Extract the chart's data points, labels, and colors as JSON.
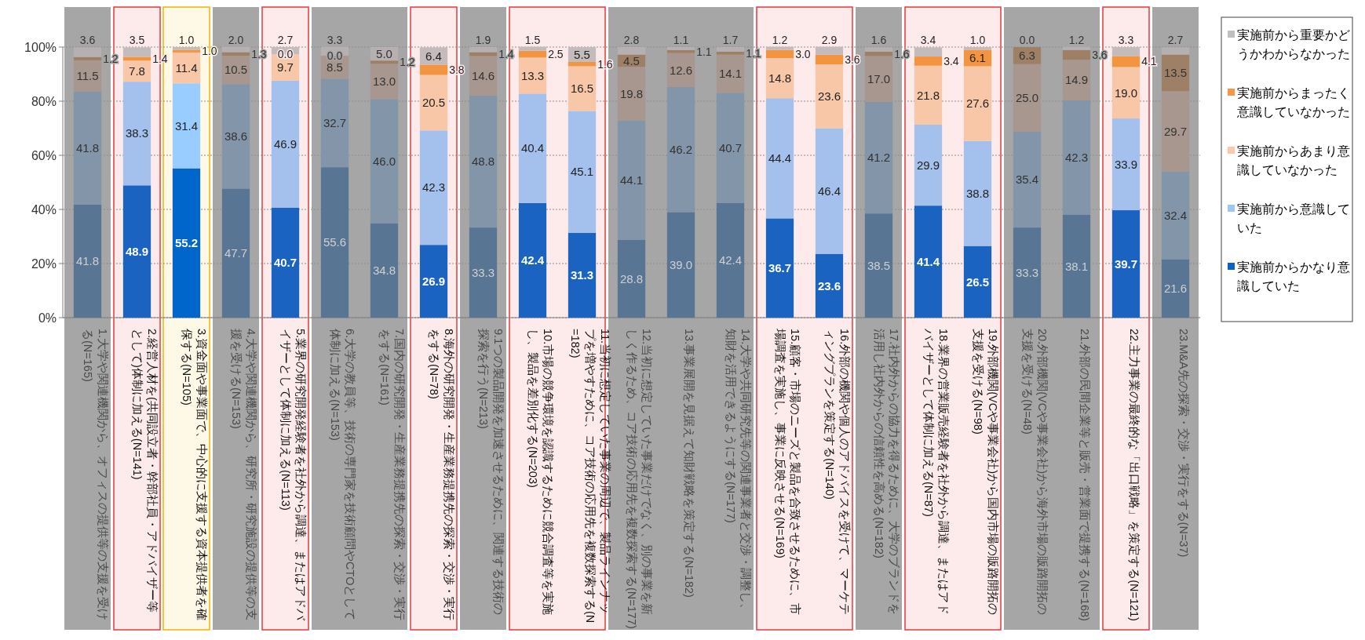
{
  "chart_data": {
    "type": "bar",
    "stacked": true,
    "grid": "y",
    "legend": "right",
    "categories": [
      "1.大学や関連機関から、オフィスの提供等の支援を受ける(N=165)",
      "2.経営人材を(共同設立者・幹部社員・アドバイザー等として)体制に加える(N=141)",
      "3.資金面や事業面で、中心的に支援する資本提供者を確保する(N=105)",
      "4.大学や関連機関から、研究所・研究施設の提供等の支援を受ける(N=153)",
      "5.業界の研究開発経験者を社外から調達、またはアドバイザーとして体制に加える(N=113)",
      "6.大学の教員等、技術の専門家を技術顧問やCTOとして体制に加える(N=153)",
      "7.国内の研究開発・生産業務提携先の探索・交渉・実行をする(N=161)",
      "8.海外の研究開発・生産業務提携先の探索・交渉・実行をする(N=78)",
      "9.1つの製品開発を加速させるために、関連する技術の探索を行う(N=213)",
      "10.市場の競争環境を認識するために競合調査等を実施し、製品を差別化する(N=203)",
      "11.当初に想定していた事業の周辺で、製品ラインナップを増やすために、コア技術の応用先を複数探索する(N=182)",
      "12.当初に想定していた事業だけでなく、別の事業を新しく作るため、コア技術の応用先を複数探索する(N=177)",
      "13.事業展開を見据えて知財戦略を策定する(N=182)",
      "14.大学や共同研究先等の関連事業者と交渉・調整し、知財を活用できるようにする(N=177)",
      "15.顧客・市場のニーズと製品を合致させるために、市場調査を実施し、事業に反映させる(N=169)",
      "16.外部の機関や個人のアドバイスを受けて、マーケティングプランを策定する(N=140)",
      "17.社内外からの協力を得るために、大学のブランドを活用し社内外からの信頼性を高める(N=182)",
      "18.業界の営業販売経験者を社外から調達、またはアドバイザーとして体制に加える(N=87)",
      "19.外部機関(VCや事業会社)から国内市場の販路開拓の支援を受ける(N=98)",
      "20.外部機関(VCや事業会社)から海外市場の販路開拓の支援を受ける(N=48)",
      "21.外部の民間企業等と販売・営業面で提携する(N=168)",
      "22.主力事業の最終的な「出口戦略」を策定する(N=121)",
      "23.M&A先の探索・交渉・実行をする(N=37)"
    ],
    "ylim": [
      0,
      100
    ],
    "yticks": [
      {
        "value": 0,
        "label": "0%"
      },
      {
        "value": 20,
        "label": "20%"
      },
      {
        "value": 40,
        "label": "40%"
      },
      {
        "value": 60,
        "label": "60%"
      },
      {
        "value": 80,
        "label": "80%"
      },
      {
        "value": 100,
        "label": "100%"
      }
    ],
    "series": [
      {
        "name": "実施前からかなり意識していた",
        "color": "#0a62c8",
        "values": [
          41.8,
          48.9,
          55.2,
          47.7,
          40.7,
          55.6,
          34.8,
          26.9,
          33.3,
          42.4,
          31.3,
          28.8,
          39.0,
          42.4,
          36.7,
          23.6,
          38.5,
          41.4,
          26.5,
          33.3,
          38.1,
          39.7,
          21.6
        ],
        "value_labels": [
          "41.8",
          "48.9",
          "55.2",
          "47.7",
          "40.7",
          "55.6",
          "34.8",
          "26.9",
          "33.3",
          "42.4",
          "31.3",
          "28.8",
          "39.0",
          "42.4",
          "36.7",
          "23.6",
          "38.5",
          "41.4",
          "26.5",
          "33.3",
          "38.1",
          "39.7",
          "21.6"
        ],
        "colors": [
          "#587594",
          "#1a63c0",
          "#0066cc",
          "#587594",
          "#1a63c0",
          "#587594",
          "#587594",
          "#1a63c0",
          "#587594",
          "#1a63c0",
          "#1a63c0",
          "#587594",
          "#587594",
          "#587594",
          "#1a63c0",
          "#1a63c0",
          "#587594",
          "#1a63c0",
          "#1a63c0",
          "#587594",
          "#587594",
          "#1a63c0",
          "#587594"
        ]
      },
      {
        "name": "実施前から意識していた",
        "color": "#9fc7f5",
        "values": [
          41.8,
          38.3,
          31.4,
          38.6,
          46.9,
          32.7,
          46.0,
          42.3,
          48.8,
          40.4,
          45.1,
          44.1,
          46.2,
          40.7,
          44.4,
          46.4,
          41.2,
          29.9,
          38.8,
          35.4,
          42.3,
          33.9,
          32.4
        ],
        "value_labels": [
          "41.8",
          "38.3",
          "31.4",
          "38.6",
          "46.9",
          "32.7",
          "46.0",
          "42.3",
          "48.8",
          "40.4",
          "45.1",
          "44.1",
          "46.2",
          "40.7",
          "44.4",
          "46.4",
          "41.2",
          "29.9",
          "38.8",
          "35.4",
          "42.3",
          "33.9",
          "32.4"
        ],
        "colors": [
          "#8295a9",
          "#a4c0ec",
          "#99ccff",
          "#8295a9",
          "#a4c0ec",
          "#8295a9",
          "#8295a9",
          "#a4c0ec",
          "#8295a9",
          "#a4c0ec",
          "#a4c0ec",
          "#8295a9",
          "#8295a9",
          "#8295a9",
          "#a4c0ec",
          "#a4c0ec",
          "#8295a9",
          "#a4c0ec",
          "#a4c0ec",
          "#8295a9",
          "#8295a9",
          "#a4c0ec",
          "#8295a9"
        ]
      },
      {
        "name": "実施前からあまり意識していなかった",
        "color": "#f9c9a9",
        "values": [
          11.5,
          7.8,
          11.4,
          10.5,
          9.7,
          8.5,
          13.0,
          20.5,
          14.6,
          13.3,
          16.5,
          19.8,
          12.6,
          14.1,
          14.8,
          23.6,
          17.0,
          21.8,
          27.6,
          25.0,
          14.9,
          19.0,
          29.7
        ],
        "value_labels": [
          "11.5",
          "7.8",
          "11.4",
          "10.5",
          "9.7",
          "8.5",
          "13.0",
          "20.5",
          "14.6",
          "13.3",
          "16.5",
          "19.8",
          "12.6",
          "14.1",
          "14.8",
          "23.6",
          "17.0",
          "21.8",
          "27.6",
          "25.0",
          "14.9",
          "19.0",
          "29.7"
        ],
        "colors": [
          "#a8978f",
          "#f8c7a7",
          "#f8c7a7",
          "#a8978f",
          "#f8c7a7",
          "#a8978f",
          "#a8978f",
          "#f8c7a7",
          "#a8978f",
          "#f8c7a7",
          "#f8c7a7",
          "#a8978f",
          "#a8978f",
          "#a8978f",
          "#f8c7a7",
          "#f8c7a7",
          "#a8978f",
          "#f8c7a7",
          "#f8c7a7",
          "#a8978f",
          "#a8978f",
          "#f8c7a7",
          "#a8978f"
        ]
      },
      {
        "name": "実施前からまったく意識していなかった",
        "color": "#f79646",
        "values": [
          1.2,
          1.4,
          1.0,
          1.3,
          0.0,
          0.0,
          1.2,
          3.8,
          1.4,
          2.5,
          1.6,
          4.5,
          1.1,
          1.1,
          3.0,
          3.6,
          1.6,
          3.4,
          6.1,
          6.3,
          3.6,
          4.1,
          13.5
        ],
        "value_labels": [
          "1.2",
          "1.4",
          "1.0",
          "1.3",
          "0.0",
          "0.0",
          "1.2",
          "3.8",
          "1.4",
          "2.5",
          "1.6",
          "4.5",
          "1.1",
          "1.1",
          "3.0",
          "3.6",
          "1.6",
          "3.4",
          "6.1",
          "6.3",
          "3.6",
          "4.1",
          "13.5"
        ],
        "colors": [
          "#9e8066",
          "#f39440",
          "#f39440",
          "#9e8066",
          "#f39440",
          "#9e8066",
          "#9e8066",
          "#f39440",
          "#9e8066",
          "#f39440",
          "#f39440",
          "#9e8066",
          "#9e8066",
          "#9e8066",
          "#f39440",
          "#f39440",
          "#9e8066",
          "#f39440",
          "#f39440",
          "#9e8066",
          "#9e8066",
          "#f39440",
          "#9e8066"
        ]
      },
      {
        "name": "実施前から重要かどうかわからなかった",
        "color": "#bfbfbf",
        "values": [
          3.6,
          3.5,
          1.0,
          2.0,
          2.7,
          3.3,
          5.0,
          6.4,
          1.9,
          1.5,
          5.5,
          2.8,
          1.1,
          1.7,
          1.2,
          2.9,
          1.6,
          3.4,
          1.0,
          0.0,
          1.2,
          3.3,
          2.7
        ],
        "value_labels": [
          "3.6",
          "3.5",
          "1.0",
          "2.0",
          "2.7",
          "3.3",
          "5.0",
          "6.4",
          "1.9",
          "1.5",
          "5.5",
          "2.8",
          "1.1",
          "1.7",
          "1.2",
          "2.9",
          "1.6",
          "3.4",
          "1.0",
          "0.0",
          "1.2",
          "3.3",
          "2.7"
        ],
        "colors": [
          "#b7b0b0",
          "#c4bcbc",
          "#c4bcbc",
          "#b7b0b0",
          "#c4bcbc",
          "#b7b0b0",
          "#b7b0b0",
          "#c4bcbc",
          "#b7b0b0",
          "#c4bcbc",
          "#c4bcbc",
          "#b7b0b0",
          "#b7b0b0",
          "#b7b0b0",
          "#c4bcbc",
          "#c4bcbc",
          "#b7b0b0",
          "#c4bcbc",
          "#c4bcbc",
          "#b7b0b0",
          "#b7b0b0",
          "#c4bcbc",
          "#b7b0b0"
        ]
      }
    ],
    "bands": [
      {
        "axis": "x",
        "from": "1.大学や関連機関から、オフィスの提供等の支援を受ける(N=165)",
        "to": "1.大学や関連機関から、オフィスの提供等の支援を受ける(N=165)",
        "color": "#a6a6a6"
      },
      {
        "axis": "x",
        "from": "2.経営人材を(共同設立者・幹部社員・アドバイザー等として)体制に加える(N=141)",
        "to": "2.経営人材を(共同設立者・幹部社員・アドバイザー等として)体制に加える(N=141)",
        "color": "#e8383d"
      },
      {
        "axis": "x",
        "from": "3.資金面や事業面で、中心的に支援する資本提供者を確保する(N=105)",
        "to": "3.資金面や事業面で、中心的に支援する資本提供者を確保する(N=105)",
        "color": "#f5b400"
      },
      {
        "axis": "x",
        "from": "4.大学や関連機関から、研究所・研究施設の提供等の支援を受ける(N=153)",
        "to": "4.大学や関連機関から、研究所・研究施設の提供等の支援を受ける(N=153)",
        "color": "#a6a6a6"
      },
      {
        "axis": "x",
        "from": "5.業界の研究開発経験者を社外から調達、またはアドバイザーとして体制に加える(N=113)",
        "to": "5.業界の研究開発経験者を社外から調達、またはアドバイザーとして体制に加える(N=113)",
        "color": "#e8383d"
      },
      {
        "axis": "x",
        "from": "6.大学の教員等、技術の専門家を技術顧問やCTOとして体制に加える(N=153)",
        "to": "7.国内の研究開発・生産業務提携先の探索・交渉・実行をする(N=161)",
        "color": "#a6a6a6"
      },
      {
        "axis": "x",
        "from": "8.海外の研究開発・生産業務提携先の探索・交渉・実行をする(N=78)",
        "to": "8.海外の研究開発・生産業務提携先の探索・交渉・実行をする(N=78)",
        "color": "#e8383d"
      },
      {
        "axis": "x",
        "from": "9.1つの製品開発を加速させるために、関連する技術の探索を行う(N=213)",
        "to": "9.1つの製品開発を加速させるために、関連する技術の探索を行う(N=213)",
        "color": "#a6a6a6"
      },
      {
        "axis": "x",
        "from": "10.市場の競争環境を認識するために競合調査等を実施し、製品を差別化する(N=203)",
        "to": "11.当初に想定していた事業の周辺で、製品ラインナップを増やすために、コア技術の応用先を複数探索する(N=182)",
        "color": "#e8383d"
      },
      {
        "axis": "x",
        "from": "12.当初に想定していた事業だけでなく、別の事業を新しく作るため、コア技術の応用先を複数探索する(N=177)",
        "to": "14.大学や共同研究先等の関連事業者と交渉・調整し、知財を活用できるようにする(N=177)",
        "color": "#a6a6a6"
      },
      {
        "axis": "x",
        "from": "15.顧客・市場のニーズと製品を合致させるために、市場調査を実施し、事業に反映させる(N=169)",
        "to": "16.外部の機関や個人のアドバイスを受けて、マーケティングプランを策定する(N=140)",
        "color": "#e8383d"
      },
      {
        "axis": "x",
        "from": "17.社内外からの協力を得るために、大学のブランドを活用し社内外からの信頼性を高める(N=182)",
        "to": "17.社内外からの協力を得るために、大学のブランドを活用し社内外からの信頼性を高める(N=182)",
        "color": "#a6a6a6"
      },
      {
        "axis": "x",
        "from": "18.業界の営業販売経験者を社外から調達、またはアドバイザーとして体制に加える(N=87)",
        "to": "19.外部機関(VCや事業会社)から国内市場の販路開拓の支援を受ける(N=98)",
        "color": "#e8383d"
      },
      {
        "axis": "x",
        "from": "20.外部機関(VCや事業会社)から海外市場の販路開拓の支援を受ける(N=48)",
        "to": "21.外部の民間企業等と販売・営業面で提携する(N=168)",
        "color": "#a6a6a6"
      },
      {
        "axis": "x",
        "from": "22.主力事業の最終的な「出口戦略」を策定する(N=121)",
        "to": "22.主力事業の最終的な「出口戦略」を策定する(N=121)",
        "color": "#e8383d"
      },
      {
        "axis": "x",
        "from": "23.M&A先の探索・交渉・実行をする(N=37)",
        "to": "23.M&A先の探索・交渉・実行をする(N=37)",
        "color": "#a6a6a6"
      }
    ]
  }
}
